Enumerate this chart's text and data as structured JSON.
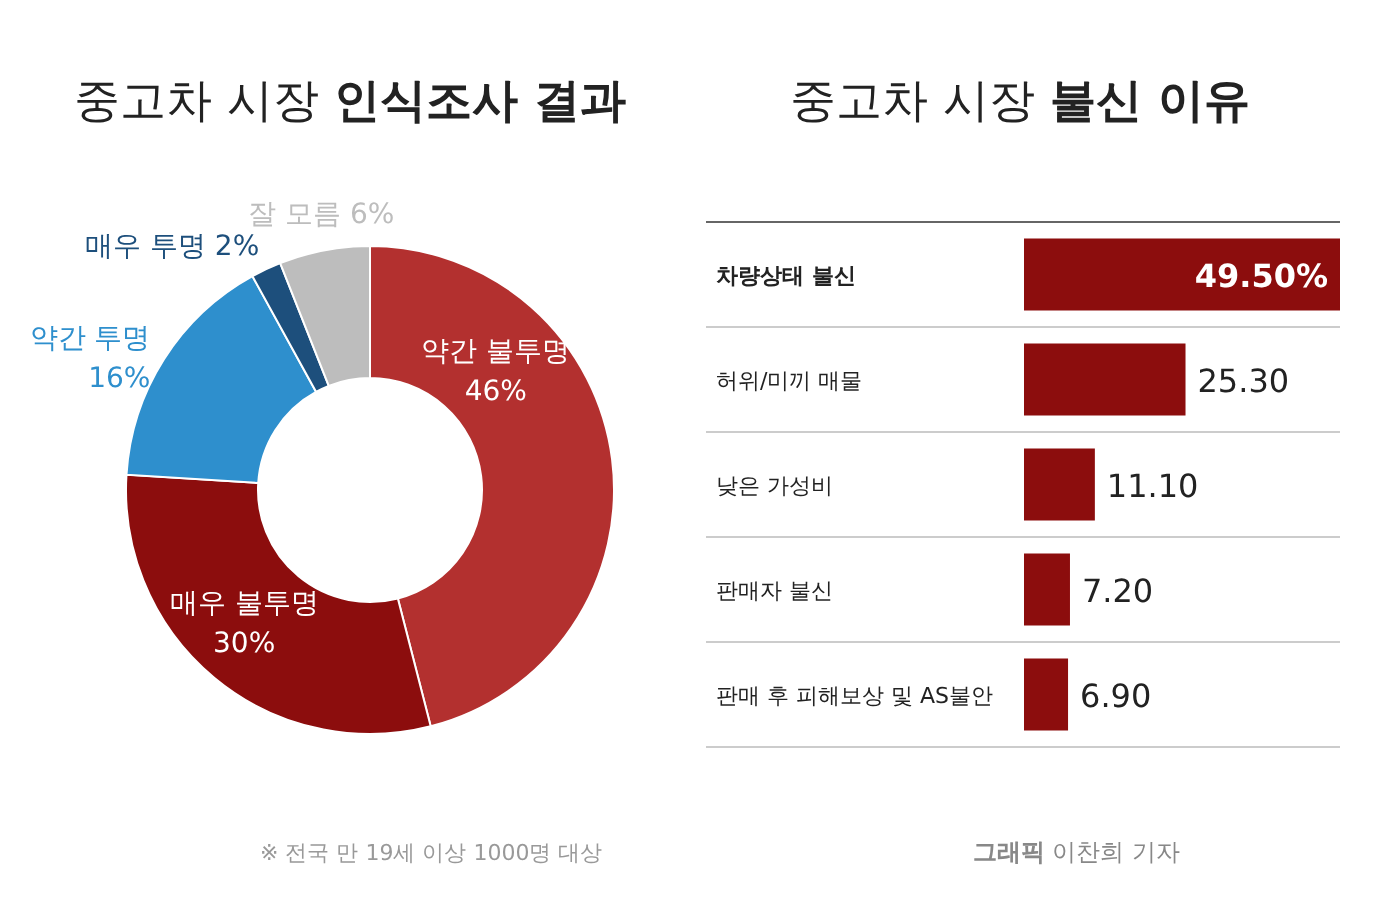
{
  "chart_data": [
    {
      "type": "donut",
      "title": "중고차 시장 **인식조사 결과**",
      "categories": [
        "약간 불투명",
        "매우 불투명",
        "약간 투명",
        "매우 투명",
        "잘 모름"
      ],
      "values": [
        46,
        30,
        16,
        2,
        6
      ],
      "value_labels": [
        "46%",
        "30%",
        "16%",
        "2%",
        "6%"
      ],
      "colors": [
        "#b3302f",
        "#8c0d0d",
        "#2e8fcd",
        "#1d4f7c",
        "#bdbdbd"
      ],
      "annotations": [
        "※ 전국 만 19세 이상 1000명 대상"
      ]
    },
    {
      "type": "bar",
      "orientation": "horizontal",
      "title": "중고차 시장 **불신 이유**",
      "categories": [
        "**차량상태 불신**",
        "허위/미끼 매물",
        "낮은 가성비",
        "판매자 불신",
        "판매 후 피해보상 및 AS불안"
      ],
      "values": [
        49.5,
        25.3,
        11.1,
        7.2,
        6.9
      ],
      "value_labels": [
        "49.50%",
        "25.30",
        "11.10",
        "7.20",
        "6.90"
      ],
      "color": "#8c0d0d",
      "annotations": [
        "**그래픽** 이찬희 기자"
      ]
    }
  ]
}
